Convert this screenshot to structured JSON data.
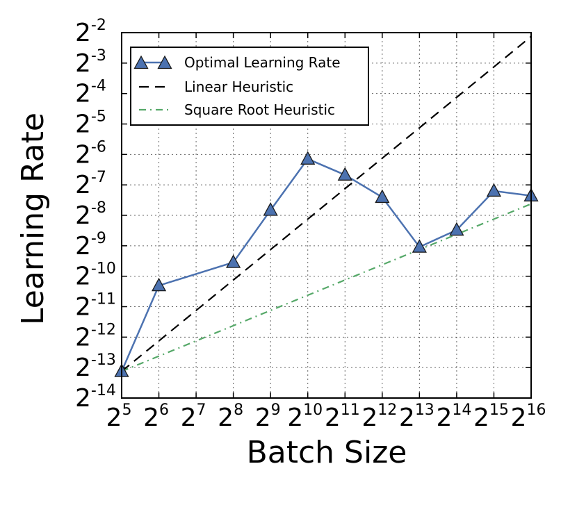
{
  "chart_data": {
    "type": "line",
    "title": "",
    "xlabel": "Batch Size",
    "ylabel": "Learning Rate",
    "x_scale": "log2",
    "y_scale": "log2",
    "xlim": [
      32,
      65536
    ],
    "ylim": [
      6.103515625e-05,
      0.25
    ],
    "x_tick_base": "2",
    "x_tick_exponents": [
      "5",
      "6",
      "7",
      "8",
      "9",
      "10",
      "11",
      "12",
      "13",
      "14",
      "15",
      "16"
    ],
    "y_tick_base": "2",
    "y_tick_exponents": [
      "-2",
      "-3",
      "-4",
      "-5",
      "-6",
      "-7",
      "-8",
      "-9",
      "-10",
      "-11",
      "-12",
      "-13",
      "-14"
    ],
    "grid": true,
    "legend_position": "top-left",
    "series": [
      {
        "name": "Optimal Learning Rate",
        "style": "solid-triangle",
        "color": "#4c72b0",
        "x": [
          32,
          64,
          256,
          512,
          1024,
          2048,
          4096,
          8192,
          16384,
          32768,
          65536
        ],
        "y": [
          0.000112,
          0.00079,
          0.00134,
          0.0044,
          0.0141,
          0.0098,
          0.0059,
          0.0019,
          0.0028,
          0.0068,
          0.0061
        ]
      },
      {
        "name": "Linear Heuristic",
        "style": "dashed",
        "color": "#000000",
        "x": [
          32,
          65536
        ],
        "y": [
          0.000112,
          0.229
        ]
      },
      {
        "name": "Square Root Heuristic",
        "style": "dashdot",
        "color": "#55a868",
        "x": [
          32,
          65536
        ],
        "y": [
          0.000112,
          0.00507
        ]
      }
    ]
  }
}
